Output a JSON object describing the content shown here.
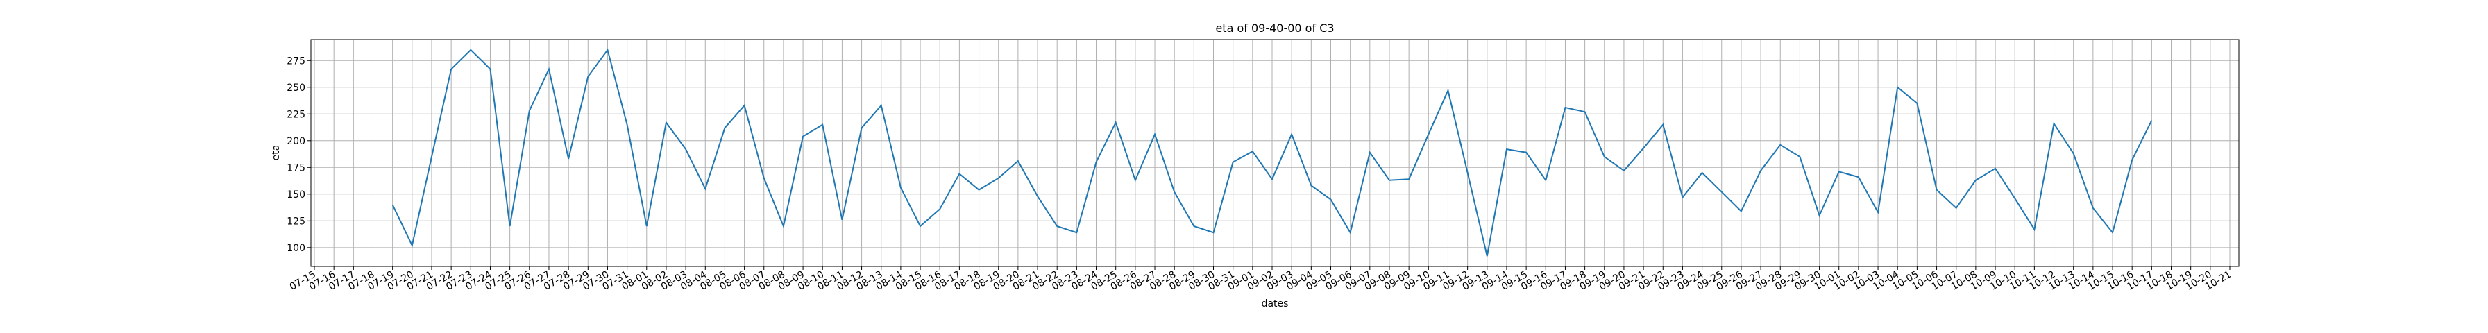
{
  "chart_data": {
    "type": "line",
    "title": "eta of 09-40-00 of C3",
    "x_label": "dates",
    "y_label": "eta",
    "categories": [
      "07-15",
      "07-16",
      "07-17",
      "07-18",
      "07-19",
      "07-20",
      "07-21",
      "07-22",
      "07-23",
      "07-24",
      "07-25",
      "07-26",
      "07-27",
      "07-28",
      "07-29",
      "07-30",
      "07-31",
      "08-01",
      "08-02",
      "08-03",
      "08-04",
      "08-05",
      "08-06",
      "08-07",
      "08-08",
      "08-09",
      "08-10",
      "08-11",
      "08-12",
      "08-13",
      "08-14",
      "08-15",
      "08-16",
      "08-17",
      "08-18",
      "08-19",
      "08-20",
      "08-21",
      "08-22",
      "08-23",
      "08-24",
      "08-25",
      "08-26",
      "08-27",
      "08-28",
      "08-29",
      "08-30",
      "08-31",
      "09-01",
      "09-02",
      "09-03",
      "09-04",
      "09-05",
      "09-06",
      "09-07",
      "09-08",
      "09-09",
      "09-10",
      "09-11",
      "09-12",
      "09-13",
      "09-14",
      "09-15",
      "09-16",
      "09-17",
      "09-18",
      "09-19",
      "09-20",
      "09-21",
      "09-22",
      "09-23",
      "09-24",
      "09-25",
      "09-26",
      "09-27",
      "09-28",
      "09-29",
      "09-30",
      "10-01",
      "10-02",
      "10-03",
      "10-04",
      "10-05",
      "10-06",
      "10-07",
      "10-08",
      "10-09",
      "10-10",
      "10-11",
      "10-12",
      "10-13",
      "10-14",
      "10-15",
      "10-16",
      "10-17",
      "10-18",
      "10-19",
      "10-20",
      "10-21"
    ],
    "values": [
      null,
      null,
      null,
      null,
      140,
      102,
      185,
      267,
      285,
      267,
      120,
      228,
      267,
      183,
      260,
      285,
      215,
      120,
      217,
      192,
      155,
      212,
      233,
      165,
      120,
      204,
      215,
      126,
      212,
      233,
      156,
      120,
      136,
      169,
      154,
      165,
      181,
      148,
      120,
      114,
      180,
      217,
      163,
      206,
      152,
      120,
      114,
      180,
      190,
      164,
      206,
      158,
      145,
      114,
      189,
      163,
      164,
      206,
      247,
      170,
      92,
      192,
      189,
      163,
      231,
      227,
      185,
      172,
      193,
      215,
      147,
      170,
      152,
      134,
      172,
      196,
      185,
      130,
      171,
      166,
      133,
      250,
      235,
      154,
      137,
      163,
      174,
      146,
      117,
      216,
      188,
      137,
      114,
      182,
      219,
      null,
      null,
      null,
      null
    ],
    "color": "#1f77b4",
    "ylim": [
      82.35,
      294.65
    ],
    "yticks": [
      100,
      125,
      150,
      175,
      200,
      225,
      250,
      275
    ],
    "grid": true
  }
}
